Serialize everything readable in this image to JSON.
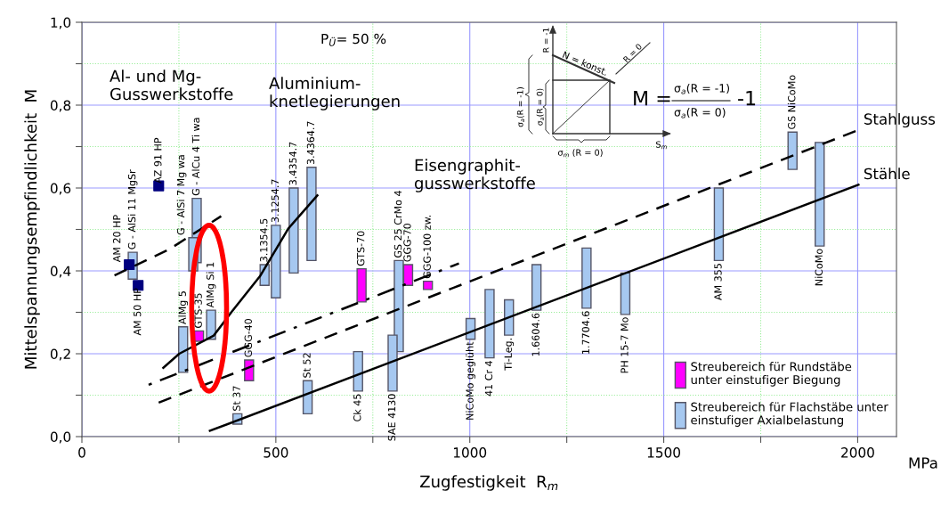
{
  "chart_data": {
    "type": "bar",
    "xlabel": "Zugfestigkeit  R$_{m}$",
    "ylabel": "Mittelspannungsempfindlichkeit  M",
    "xlim": [
      0,
      2100
    ],
    "ylim": [
      0,
      1
    ],
    "xticks": [
      0,
      {
        "value": 250,
        "label": null
      },
      500,
      {
        "value": 750,
        "label": null
      },
      1000,
      {
        "value": 1250,
        "label": null
      },
      1500,
      {
        "value": 1750,
        "label": null
      },
      2000
    ],
    "yticks": [
      {
        "value": 0,
        "label": "0,0"
      },
      {
        "value": 0.1,
        "label": null
      },
      {
        "value": 0.2,
        "label": "0,2"
      },
      {
        "value": 0.3,
        "label": null
      },
      {
        "value": 0.4,
        "label": "0,4"
      },
      {
        "value": 0.5,
        "label": null
      },
      {
        "value": 0.6,
        "label": "0,6"
      },
      {
        "value": 0.7,
        "label": null
      },
      {
        "value": 0.8,
        "label": "0,8"
      },
      {
        "value": 0.9,
        "label": null
      },
      {
        "value": 1,
        "label": "1,0"
      }
    ],
    "grid": true,
    "legend": "bottom right",
    "series": [
      {
        "name": "Streubereich für Flachstäbe unter\neinstufiger Axialbelastung",
        "color": "#a6c8f0",
        "x": [
          131,
          261,
          287,
          296,
          333,
          401,
          471,
          500,
          546,
          582,
          592,
          712,
          801,
          817,
          1002,
          1051,
          1101,
          1172,
          1301,
          1401,
          1642,
          1832,
          1902
        ],
        "base": [
          0.38,
          0.155,
          0.4,
          0.42,
          0.235,
          0.03,
          0.365,
          0.335,
          0.395,
          0.055,
          0.425,
          0.11,
          0.11,
          0.205,
          0.235,
          0.19,
          0.245,
          0.305,
          0.31,
          0.295,
          0.425,
          0.645,
          0.46
        ],
        "values": [
          0.065,
          0.11,
          0.08,
          0.155,
          0.07,
          0.025,
          0.05,
          0.175,
          0.205,
          0.08,
          0.225,
          0.095,
          0.135,
          0.22,
          0.05,
          0.165,
          0.085,
          0.11,
          0.145,
          0.1,
          0.175,
          0.09,
          0.25
        ]
      },
      {
        "name": "Streubereich für Rundstäbe\nunter einstufiger Biegung",
        "color": "#ff00ff",
        "x": [
          302,
          431,
          721,
          841,
          892
        ],
        "base": [
          0.23,
          0.135,
          0.325,
          0.365,
          0.355
        ],
        "values": [
          0.025,
          0.05,
          0.08,
          0.05,
          0.02
        ]
      },
      {
        "type": "scatter",
        "color": "#00007f",
        "marker": "square",
        "x": [
          122,
          198,
          145
        ],
        "values": [
          0.415,
          0.605,
          0.365
        ]
      },
      {
        "type": "line",
        "name": "Stähle",
        "color": "#000000",
        "line_style": "solid",
        "x": [
          330,
          2002
        ],
        "values": [
          0.014,
          0.608
        ]
      },
      {
        "type": "line",
        "name": "Stahlguss",
        "color": "#000000",
        "line_style": "dashed",
        "x": [
          198,
          2002
        ],
        "values": [
          0.082,
          0.74
        ]
      },
      {
        "type": "line",
        "color": "#000000",
        "line_style": "dashdot",
        "x": [
          164,
          972
        ],
        "values": [
          0.122,
          0.418
        ]
      },
      {
        "type": "line",
        "color": "#000000",
        "line_style": "solid",
        "x": [
          210,
          251,
          340,
          386,
          459,
          532,
          607
        ],
        "values": [
          0.166,
          0.2,
          0.244,
          0.301,
          0.387,
          0.502,
          0.582
        ]
      },
      {
        "type": "line",
        "color": "#000000",
        "line_style": "dashed",
        "x": [
          84,
          225,
          359
        ],
        "values": [
          0.389,
          0.452,
          0.532
        ]
      }
    ],
    "annotations": [
      "P$_{Ü}$= 50 %",
      "Al- und Mg-\nGusswerkstoffe",
      "Aluminium-\nknetlegierungen",
      "Eisengraphit-\ngusswerkstoffe",
      "MPa",
      "M =",
      "σ$_{a}$(R = -1)",
      "σ$_{a}$(R = 0)",
      "-1",
      "R = -1",
      "N = konst.",
      "R = 0",
      "σ$_{a}$(R = -1)",
      "σ$_{a}$(R = 0)",
      "σ$_{m}$ (R = 0)",
      "S$_{m}$",
      {
        "text": "G - AlSi 11 MgSr",
        "x": 131,
        "y": 0.445
      },
      {
        "text": "AlMg 5",
        "x": 261,
        "y": 0.265
      },
      {
        "text": "G - AlSi 7 Mg wa",
        "x": 287,
        "y": 0.48
      },
      {
        "text": "G - AlCu 4 Ti wa",
        "x": 296,
        "y": 0.575
      },
      {
        "text": "AlMg Si 1",
        "x": 333,
        "y": 0.305
      },
      {
        "text": "St 37",
        "x": 401,
        "y": 0.055
      },
      {
        "text": "3.1354.5",
        "x": 471,
        "y": 0.415
      },
      {
        "text": "3.1254.7",
        "x": 500,
        "y": 0.51
      },
      {
        "text": "3.4354.7",
        "x": 546,
        "y": 0.6
      },
      {
        "text": "St 52",
        "x": 582,
        "y": 0.135
      },
      {
        "text": "3.4364.7",
        "x": 592,
        "y": 0.65
      },
      {
        "text": "Ck 45",
        "x": 712,
        "y": 0.11
      },
      {
        "text": "SAE 4130",
        "x": 801,
        "y": 0.11
      },
      {
        "text": "GS 25 CrMo 4",
        "x": 817,
        "y": 0.425
      },
      {
        "text": "NiCoMo geglüht",
        "x": 1002,
        "y": 0.235
      },
      {
        "text": "41 Cr 4",
        "x": 1051,
        "y": 0.19
      },
      {
        "text": "Ti-Leg.",
        "x": 1101,
        "y": 0.245
      },
      {
        "text": "1.6604.6",
        "x": 1172,
        "y": 0.305
      },
      {
        "text": "1.7704.6",
        "x": 1301,
        "y": 0.31
      },
      {
        "text": "PH 15-7 Mo",
        "x": 1401,
        "y": 0.295
      },
      {
        "text": "AM 355",
        "x": 1642,
        "y": 0.425
      },
      {
        "text": "GS NiCoMo",
        "x": 1832,
        "y": 0.735
      },
      {
        "text": "NiCoMo",
        "x": 1902,
        "y": 0.46
      },
      {
        "text": "GTS-35",
        "x": 302,
        "y": 0.255
      },
      {
        "text": "GGG-40",
        "x": 431,
        "y": 0.185
      },
      {
        "text": "GTS-70",
        "x": 721,
        "y": 0.405
      },
      {
        "text": "GGG-70",
        "x": 841,
        "y": 0.415
      },
      {
        "text": "GGG-100 zw.",
        "x": 892,
        "y": 0.375
      },
      {
        "text": "AM 20 HP",
        "x": 122,
        "y": 0.415
      },
      {
        "text": "AZ 91 HP",
        "x": 198,
        "y": 0.605
      },
      {
        "text": "AM 50 HP",
        "x": 145,
        "y": 0.365
      }
    ]
  }
}
